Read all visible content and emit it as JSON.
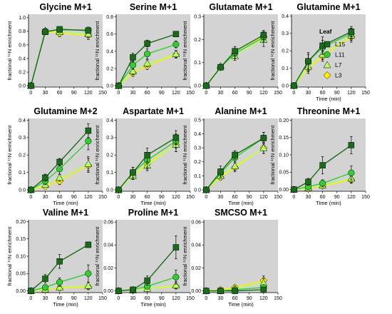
{
  "legend": {
    "title": "Leaf",
    "items": [
      "L15",
      "L11",
      "L7",
      "L3"
    ]
  },
  "series_styles": {
    "L15": {
      "color": "#1a6b1a",
      "marker": "square"
    },
    "L11": {
      "color": "#33cc33",
      "marker": "circle"
    },
    "L7": {
      "color": "#b3ff66",
      "marker": "triangle"
    },
    "L3": {
      "color": "#ffee00",
      "marker": "diamond"
    }
  },
  "chart_data": [
    {
      "type": "line",
      "title": "Glycine M+1",
      "xlabel": "",
      "ylabel": "fractional ¹⁵N enrichment",
      "x": [
        0,
        30,
        60,
        120
      ],
      "xlim": [
        -5,
        150
      ],
      "xticks": [
        0,
        30,
        60,
        90,
        120,
        150
      ],
      "ylim": [
        -0.02,
        1.05
      ],
      "yticks": [
        0.0,
        0.2,
        0.4,
        0.6,
        0.8,
        1.0
      ],
      "ytick_labels": [
        "0.0",
        "0.2",
        "0.4",
        "0.6",
        "0.8",
        "1.0"
      ],
      "series": [
        {
          "name": "L15",
          "values": [
            0.0,
            0.79,
            0.83,
            0.81
          ],
          "err": [
            0,
            0.04,
            0.03,
            0.03
          ]
        },
        {
          "name": "L11",
          "values": [
            0.0,
            0.8,
            0.82,
            0.82
          ],
          "err": [
            0,
            0.03,
            0.03,
            0.03
          ]
        },
        {
          "name": "L7",
          "values": [
            0.0,
            0.81,
            0.79,
            0.76
          ],
          "err": [
            0,
            0.03,
            0.04,
            0.05
          ]
        },
        {
          "name": "L3",
          "values": [
            0.0,
            0.8,
            0.77,
            0.74
          ],
          "err": [
            0,
            0.04,
            0.05,
            0.06
          ]
        }
      ]
    },
    {
      "type": "line",
      "title": "Serine M+1",
      "xlabel": "",
      "ylabel": "fractional ¹⁵N enrichment",
      "x": [
        0,
        30,
        60,
        120
      ],
      "xlim": [
        -5,
        150
      ],
      "xticks": [
        0,
        30,
        60,
        90,
        120,
        150
      ],
      "ylim": [
        -0.015,
        0.83
      ],
      "yticks": [
        0.0,
        0.2,
        0.4,
        0.6,
        0.8
      ],
      "ytick_labels": [
        "0.0",
        "0.2",
        "0.4",
        "0.6",
        "0.8"
      ],
      "series": [
        {
          "name": "L15",
          "values": [
            0.0,
            0.33,
            0.49,
            0.6
          ],
          "err": [
            0,
            0.05,
            0.04,
            0.03
          ]
        },
        {
          "name": "L11",
          "values": [
            0.0,
            0.24,
            0.37,
            0.48
          ],
          "err": [
            0,
            0.05,
            0.06,
            0.04
          ]
        },
        {
          "name": "L7",
          "values": [
            0.0,
            0.17,
            0.26,
            0.37
          ],
          "err": [
            0,
            0.04,
            0.04,
            0.04
          ]
        },
        {
          "name": "L3",
          "values": [
            0.0,
            0.15,
            0.23,
            0.36
          ],
          "err": [
            0,
            0.04,
            0.04,
            0.04
          ]
        }
      ]
    },
    {
      "type": "line",
      "title": "Glutamate M+1",
      "xlabel": "",
      "ylabel": "fractional ¹⁵N enrichment",
      "x": [
        0,
        30,
        60,
        120
      ],
      "xlim": [
        -5,
        150
      ],
      "xticks": [
        0,
        30,
        60,
        90,
        120,
        150
      ],
      "ylim": [
        -0.006,
        0.31
      ],
      "yticks": [
        0.0,
        0.1,
        0.2,
        0.3
      ],
      "ytick_labels": [
        "0.0",
        "0.1",
        "0.2",
        "0.3"
      ],
      "series": [
        {
          "name": "L15",
          "values": [
            0.0,
            0.08,
            0.15,
            0.22
          ],
          "err": [
            0,
            0.01,
            0.02,
            0.02
          ]
        },
        {
          "name": "L11",
          "values": [
            0.0,
            0.08,
            0.14,
            0.21
          ],
          "err": [
            0,
            0.01,
            0.02,
            0.02
          ]
        },
        {
          "name": "L7",
          "values": [
            0.0,
            0.085,
            0.13,
            0.2
          ],
          "err": [
            0,
            0.01,
            0.02,
            0.03
          ]
        },
        {
          "name": "L3",
          "values": [
            0.0,
            0.08,
            0.14,
            0.215
          ],
          "err": [
            0,
            0.01,
            0.02,
            0.02
          ]
        }
      ]
    },
    {
      "type": "line",
      "title": "Glutamine M+1",
      "xlabel": "Time (min)",
      "ylabel": "fractional ¹⁵N enrichment",
      "x": [
        0,
        30,
        60,
        120
      ],
      "xlim": [
        -5,
        150
      ],
      "xticks": [
        0,
        30,
        60,
        90,
        120,
        150
      ],
      "ylim": [
        -0.008,
        0.41
      ],
      "yticks": [
        0.0,
        0.1,
        0.2,
        0.3,
        0.4
      ],
      "ytick_labels": [
        "0.0",
        "0.1",
        "0.2",
        "0.3",
        "0.4"
      ],
      "series": [
        {
          "name": "L15",
          "values": [
            0.0,
            0.14,
            0.23,
            0.31
          ],
          "err": [
            0,
            0.05,
            0.05,
            0.03
          ]
        },
        {
          "name": "L11",
          "values": [
            0.0,
            0.14,
            0.22,
            0.3
          ],
          "err": [
            0,
            0.04,
            0.04,
            0.03
          ]
        },
        {
          "name": "L7",
          "values": [
            0.0,
            0.11,
            0.18,
            0.29
          ],
          "err": [
            0,
            0.03,
            0.03,
            0.03
          ]
        },
        {
          "name": "L3",
          "values": [
            0.0,
            0.1,
            0.17,
            0.28
          ],
          "err": [
            0,
            0.03,
            0.03,
            0.03
          ]
        }
      ]
    },
    {
      "type": "line",
      "title": "Glutamine M+2",
      "xlabel": "Time (min)",
      "ylabel": "fractional ¹⁵N enrichment",
      "x": [
        0,
        30,
        60,
        120
      ],
      "xlim": [
        -5,
        150
      ],
      "xticks": [
        0,
        30,
        60,
        90,
        120,
        150
      ],
      "ylim": [
        -0.008,
        0.41
      ],
      "yticks": [
        0.0,
        0.1,
        0.2,
        0.3,
        0.4
      ],
      "ytick_labels": [
        "0.0",
        "0.1",
        "0.2",
        "0.3",
        "0.4"
      ],
      "series": [
        {
          "name": "L15",
          "values": [
            0.0,
            0.07,
            0.16,
            0.34
          ],
          "err": [
            0,
            0.02,
            0.02,
            0.04
          ]
        },
        {
          "name": "L11",
          "values": [
            0.0,
            0.05,
            0.12,
            0.28
          ],
          "err": [
            0,
            0.02,
            0.03,
            0.05
          ]
        },
        {
          "name": "L7",
          "values": [
            0.0,
            0.03,
            0.07,
            0.15
          ],
          "err": [
            0,
            0.01,
            0.02,
            0.04
          ]
        },
        {
          "name": "L3",
          "values": [
            0.0,
            0.02,
            0.05,
            0.14
          ],
          "err": [
            0,
            0.01,
            0.02,
            0.04
          ]
        }
      ]
    },
    {
      "type": "line",
      "title": "Aspartate M+1",
      "xlabel": "Time (min)",
      "ylabel": "fractional ¹⁵N enrichment",
      "x": [
        0,
        30,
        60,
        120
      ],
      "xlim": [
        -5,
        150
      ],
      "xticks": [
        0,
        30,
        60,
        90,
        120,
        150
      ],
      "ylim": [
        -0.008,
        0.41
      ],
      "yticks": [
        0.0,
        0.1,
        0.2,
        0.3,
        0.4
      ],
      "ytick_labels": [
        "0.0",
        "0.1",
        "0.2",
        "0.3",
        "0.4"
      ],
      "series": [
        {
          "name": "L15",
          "values": [
            0.0,
            0.1,
            0.2,
            0.3
          ],
          "err": [
            0,
            0.03,
            0.04,
            0.04
          ]
        },
        {
          "name": "L11",
          "values": [
            0.0,
            0.1,
            0.17,
            0.28
          ],
          "err": [
            0,
            0.03,
            0.04,
            0.04
          ]
        },
        {
          "name": "L7",
          "values": [
            0.0,
            0.08,
            0.14,
            0.26
          ],
          "err": [
            0,
            0.02,
            0.03,
            0.04
          ]
        },
        {
          "name": "L3",
          "values": [
            0.0,
            0.08,
            0.15,
            0.26
          ],
          "err": [
            0,
            0.02,
            0.03,
            0.04
          ]
        }
      ]
    },
    {
      "type": "line",
      "title": "Alanine M+1",
      "xlabel": "Time (min)",
      "ylabel": "fractional ¹⁵N enrichment",
      "x": [
        0,
        30,
        60,
        120
      ],
      "xlim": [
        -5,
        150
      ],
      "xticks": [
        0,
        30,
        60,
        90,
        120,
        150
      ],
      "ylim": [
        -0.01,
        0.51
      ],
      "yticks": [
        0.0,
        0.1,
        0.2,
        0.3,
        0.4,
        0.5
      ],
      "ytick_labels": [
        "0.0",
        "0.1",
        "0.2",
        "0.3",
        "0.4",
        "0.5"
      ],
      "series": [
        {
          "name": "L15",
          "values": [
            0.0,
            0.13,
            0.25,
            0.37
          ],
          "err": [
            0,
            0.04,
            0.03,
            0.04
          ]
        },
        {
          "name": "L11",
          "values": [
            0.0,
            0.12,
            0.23,
            0.37
          ],
          "err": [
            0,
            0.03,
            0.03,
            0.04
          ]
        },
        {
          "name": "L7",
          "values": [
            0.0,
            0.1,
            0.17,
            0.3
          ],
          "err": [
            0,
            0.02,
            0.03,
            0.04
          ]
        },
        {
          "name": "L3",
          "values": [
            0.0,
            0.09,
            0.16,
            0.3
          ],
          "err": [
            0,
            0.02,
            0.03,
            0.04
          ]
        }
      ]
    },
    {
      "type": "line",
      "title": "Threonine M+1",
      "xlabel": "Time (min)",
      "ylabel": "fractional ¹⁵N enrichment",
      "x": [
        0,
        30,
        60,
        120
      ],
      "xlim": [
        -5,
        150
      ],
      "xticks": [
        0,
        30,
        60,
        90,
        120,
        150
      ],
      "ylim": [
        -0.005,
        0.205
      ],
      "yticks": [
        0.0,
        0.05,
        0.1,
        0.15,
        0.2
      ],
      "ytick_labels": [
        "0.00",
        "0.05",
        "0.10",
        "0.15",
        "0.20"
      ],
      "series": [
        {
          "name": "L15",
          "values": [
            0.0,
            0.022,
            0.07,
            0.128
          ],
          "err": [
            0,
            0.01,
            0.025,
            0.025
          ]
        },
        {
          "name": "L11",
          "values": [
            0.0,
            0.008,
            0.018,
            0.048
          ],
          "err": [
            0,
            0.005,
            0.01,
            0.02
          ]
        },
        {
          "name": "L7",
          "values": [
            0.0,
            0.005,
            0.012,
            0.032
          ],
          "err": [
            0,
            0.003,
            0.006,
            0.012
          ]
        },
        {
          "name": "L3",
          "values": [
            0.0,
            0.003,
            0.01,
            0.028
          ],
          "err": [
            0,
            0.003,
            0.005,
            0.01
          ]
        }
      ]
    },
    {
      "type": "line",
      "title": "Valine M+1",
      "xlabel": "Time (min)",
      "ylabel": "fractional ¹⁵N enrichment",
      "x": [
        0,
        30,
        60,
        120
      ],
      "xlim": [
        -5,
        150
      ],
      "xticks": [
        0,
        30,
        60,
        90,
        120,
        150
      ],
      "ylim": [
        -0.005,
        0.205
      ],
      "yticks": [
        0.0,
        0.05,
        0.1,
        0.15,
        0.2
      ],
      "ytick_labels": [
        "0.00",
        "0.05",
        "0.10",
        "0.15",
        "0.20"
      ],
      "series": [
        {
          "name": "L15",
          "values": [
            0.0,
            0.035,
            0.085,
            0.133
          ],
          "err": [
            0,
            0.012,
            0.02,
            0.008
          ]
        },
        {
          "name": "L11",
          "values": [
            0.0,
            0.01,
            0.025,
            0.05
          ],
          "err": [
            0,
            0.006,
            0.012,
            0.025
          ]
        },
        {
          "name": "L7",
          "values": [
            0.0,
            0.005,
            0.01,
            0.015
          ],
          "err": [
            0,
            0.003,
            0.006,
            0.01
          ]
        },
        {
          "name": "L3",
          "values": [
            0.0,
            0.003,
            0.008,
            0.012
          ],
          "err": [
            0,
            0.003,
            0.005,
            0.008
          ]
        }
      ]
    },
    {
      "type": "line",
      "title": "Proline M+1",
      "xlabel": "Time (min)",
      "ylabel": "fractional ¹⁵N enrichment",
      "x": [
        0,
        30,
        60,
        120
      ],
      "xlim": [
        -5,
        150
      ],
      "xticks": [
        0,
        30,
        60,
        90,
        120,
        150
      ],
      "ylim": [
        -0.0015,
        0.062
      ],
      "yticks": [
        0.0,
        0.02,
        0.04,
        0.06
      ],
      "ytick_labels": [
        "0.00",
        "0.02",
        "0.04",
        "0.06"
      ],
      "series": [
        {
          "name": "L15",
          "values": [
            0.0,
            0.001,
            0.009,
            0.038
          ],
          "err": [
            0,
            0.001,
            0.004,
            0.01
          ]
        },
        {
          "name": "L11",
          "values": [
            0.0,
            0.001,
            0.004,
            0.012
          ],
          "err": [
            0,
            0.001,
            0.002,
            0.006
          ]
        },
        {
          "name": "L7",
          "values": [
            0.0,
            0.0005,
            0.002,
            0.005
          ],
          "err": [
            0,
            0.0005,
            0.001,
            0.003
          ]
        },
        {
          "name": "L3",
          "values": [
            0.0,
            0.0005,
            0.002,
            0.004
          ],
          "err": [
            0,
            0.0005,
            0.001,
            0.002
          ]
        }
      ]
    },
    {
      "type": "line",
      "title": "SMCSO M+1",
      "xlabel": "Time (min)",
      "ylabel": "fractional ¹⁵N enrichment",
      "x": [
        0,
        30,
        60,
        120
      ],
      "xlim": [
        -5,
        150
      ],
      "xticks": [
        0,
        30,
        60,
        90,
        120,
        150
      ],
      "ylim": [
        -0.0015,
        0.062
      ],
      "yticks": [
        0.0,
        0.02,
        0.04,
        0.06
      ],
      "ytick_labels": [
        "0.00",
        "0.02",
        "0.04",
        "0.06"
      ],
      "series": [
        {
          "name": "L15",
          "values": [
            0.0,
            0.0,
            0.0,
            0.001
          ],
          "err": [
            0,
            0.0005,
            0.0005,
            0.002
          ]
        },
        {
          "name": "L11",
          "values": [
            0.0,
            0.0,
            0.001,
            0.003
          ],
          "err": [
            0,
            0.0005,
            0.001,
            0.002
          ]
        },
        {
          "name": "L7",
          "values": [
            0.0,
            0.0,
            0.002,
            0.007
          ],
          "err": [
            0,
            0.0005,
            0.001,
            0.004
          ]
        },
        {
          "name": "L3",
          "values": [
            0.0,
            0.001,
            0.003,
            0.009
          ],
          "err": [
            0,
            0.001,
            0.002,
            0.004
          ]
        }
      ]
    }
  ]
}
